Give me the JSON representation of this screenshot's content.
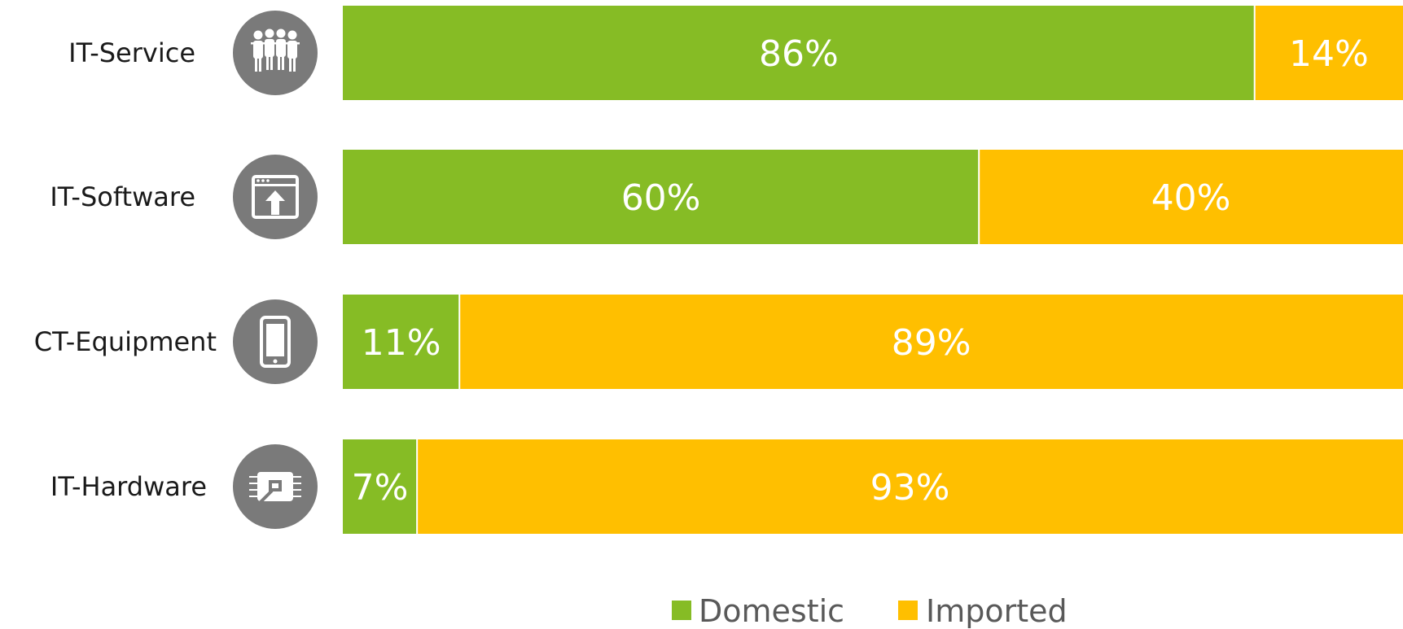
{
  "chart_data": {
    "type": "bar",
    "orientation": "horizontal",
    "stacked": true,
    "categories": [
      "IT-Service",
      "IT-Software",
      "CT-Equipment",
      "IT-Hardware"
    ],
    "category_icons": [
      "people-icon",
      "software-window-icon",
      "smartphone-icon",
      "chip-icon"
    ],
    "series": [
      {
        "name": "Domestic",
        "values": [
          86,
          60,
          11,
          7
        ],
        "labels": [
          "86%",
          "60%",
          "11%",
          "7%"
        ],
        "color": "#86BC25"
      },
      {
        "name": "Imported",
        "values": [
          14,
          40,
          89,
          93
        ],
        "labels": [
          "14%",
          "40%",
          "89%",
          "93%"
        ],
        "color": "#FFBF00"
      }
    ],
    "xlim": [
      0,
      100
    ],
    "unit": "%",
    "grid": false,
    "legend": "bottom-center",
    "icon_circle_color": "#7A7A7A"
  }
}
